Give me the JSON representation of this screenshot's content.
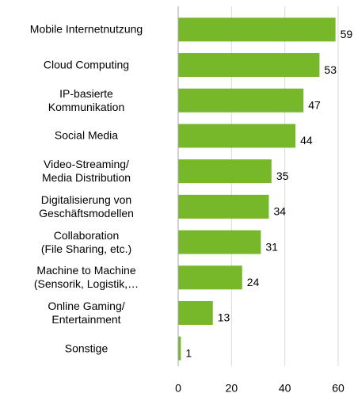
{
  "chart_data": {
    "type": "bar",
    "orientation": "horizontal",
    "categories": [
      "Mobile Internetnutzung",
      "Cloud Computing",
      "IP-basierte\nKommunikation",
      "Social Media",
      "Video-Streaming/\nMedia Distribution",
      "Digitalisierung von\nGeschäftsmodellen",
      "Collaboration\n(File Sharing, etc.)",
      "Machine to Machine\n(Sensorik, Logistik,…",
      "Online Gaming/\nEntertainment",
      "Sonstige"
    ],
    "values": [
      59,
      53,
      47,
      44,
      35,
      34,
      31,
      24,
      13,
      1
    ],
    "color": "#76b82a",
    "xlim": [
      0,
      60
    ],
    "xticks": [
      0,
      20,
      40,
      60
    ],
    "grid": true
  }
}
